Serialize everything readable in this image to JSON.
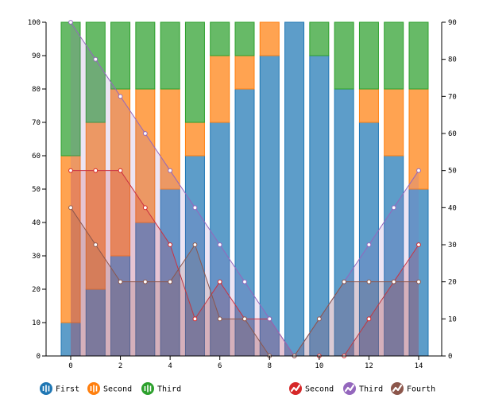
{
  "chart_data": {
    "type": "bar",
    "x": [
      0,
      1,
      2,
      3,
      4,
      5,
      6,
      7,
      8,
      9,
      10,
      11,
      12,
      13,
      14
    ],
    "bar_series": [
      {
        "name": "First",
        "color": "#1f77b4",
        "values": [
          10,
          20,
          30,
          40,
          50,
          60,
          70,
          80,
          90,
          100,
          90,
          80,
          70,
          60,
          50
        ]
      },
      {
        "name": "Second",
        "color": "#ff7f0e",
        "values": [
          50,
          50,
          50,
          40,
          30,
          10,
          20,
          10,
          10,
          0,
          0,
          0,
          10,
          20,
          30
        ]
      },
      {
        "name": "Third",
        "color": "#2ca02c",
        "values": [
          40,
          30,
          20,
          20,
          20,
          30,
          10,
          10,
          0,
          0,
          10,
          20,
          20,
          20,
          20
        ]
      }
    ],
    "line_series": [
      {
        "name": "Second",
        "color": "#d62728",
        "values": [
          50,
          50,
          50,
          40,
          30,
          10,
          20,
          10,
          10,
          0,
          0,
          0,
          10,
          20,
          30
        ]
      },
      {
        "name": "Third",
        "color": "#9467bd",
        "values": [
          90,
          80,
          70,
          60,
          50,
          40,
          30,
          20,
          10,
          0,
          10,
          20,
          30,
          40,
          50
        ]
      },
      {
        "name": "Fourth",
        "color": "#8c564b",
        "values": [
          40,
          30,
          20,
          20,
          20,
          30,
          10,
          10,
          0,
          0,
          10,
          20,
          20,
          20,
          20
        ]
      }
    ],
    "y_left": {
      "ylim": [
        0,
        100
      ],
      "ticks": [
        0,
        10,
        20,
        30,
        40,
        50,
        60,
        70,
        80,
        90,
        100
      ]
    },
    "y_right": {
      "ylim": [
        0,
        90
      ],
      "ticks": [
        0,
        10,
        20,
        30,
        40,
        50,
        60,
        70,
        80,
        90
      ]
    },
    "x_ticks": [
      0,
      2,
      4,
      6,
      8,
      10,
      12,
      14
    ],
    "legend_left": [
      "First",
      "Second",
      "Third"
    ],
    "legend_right": [
      "Second",
      "Third",
      "Fourth"
    ],
    "legend_placement": "bottom",
    "title": "",
    "xlabel": "",
    "ylabel": ""
  }
}
